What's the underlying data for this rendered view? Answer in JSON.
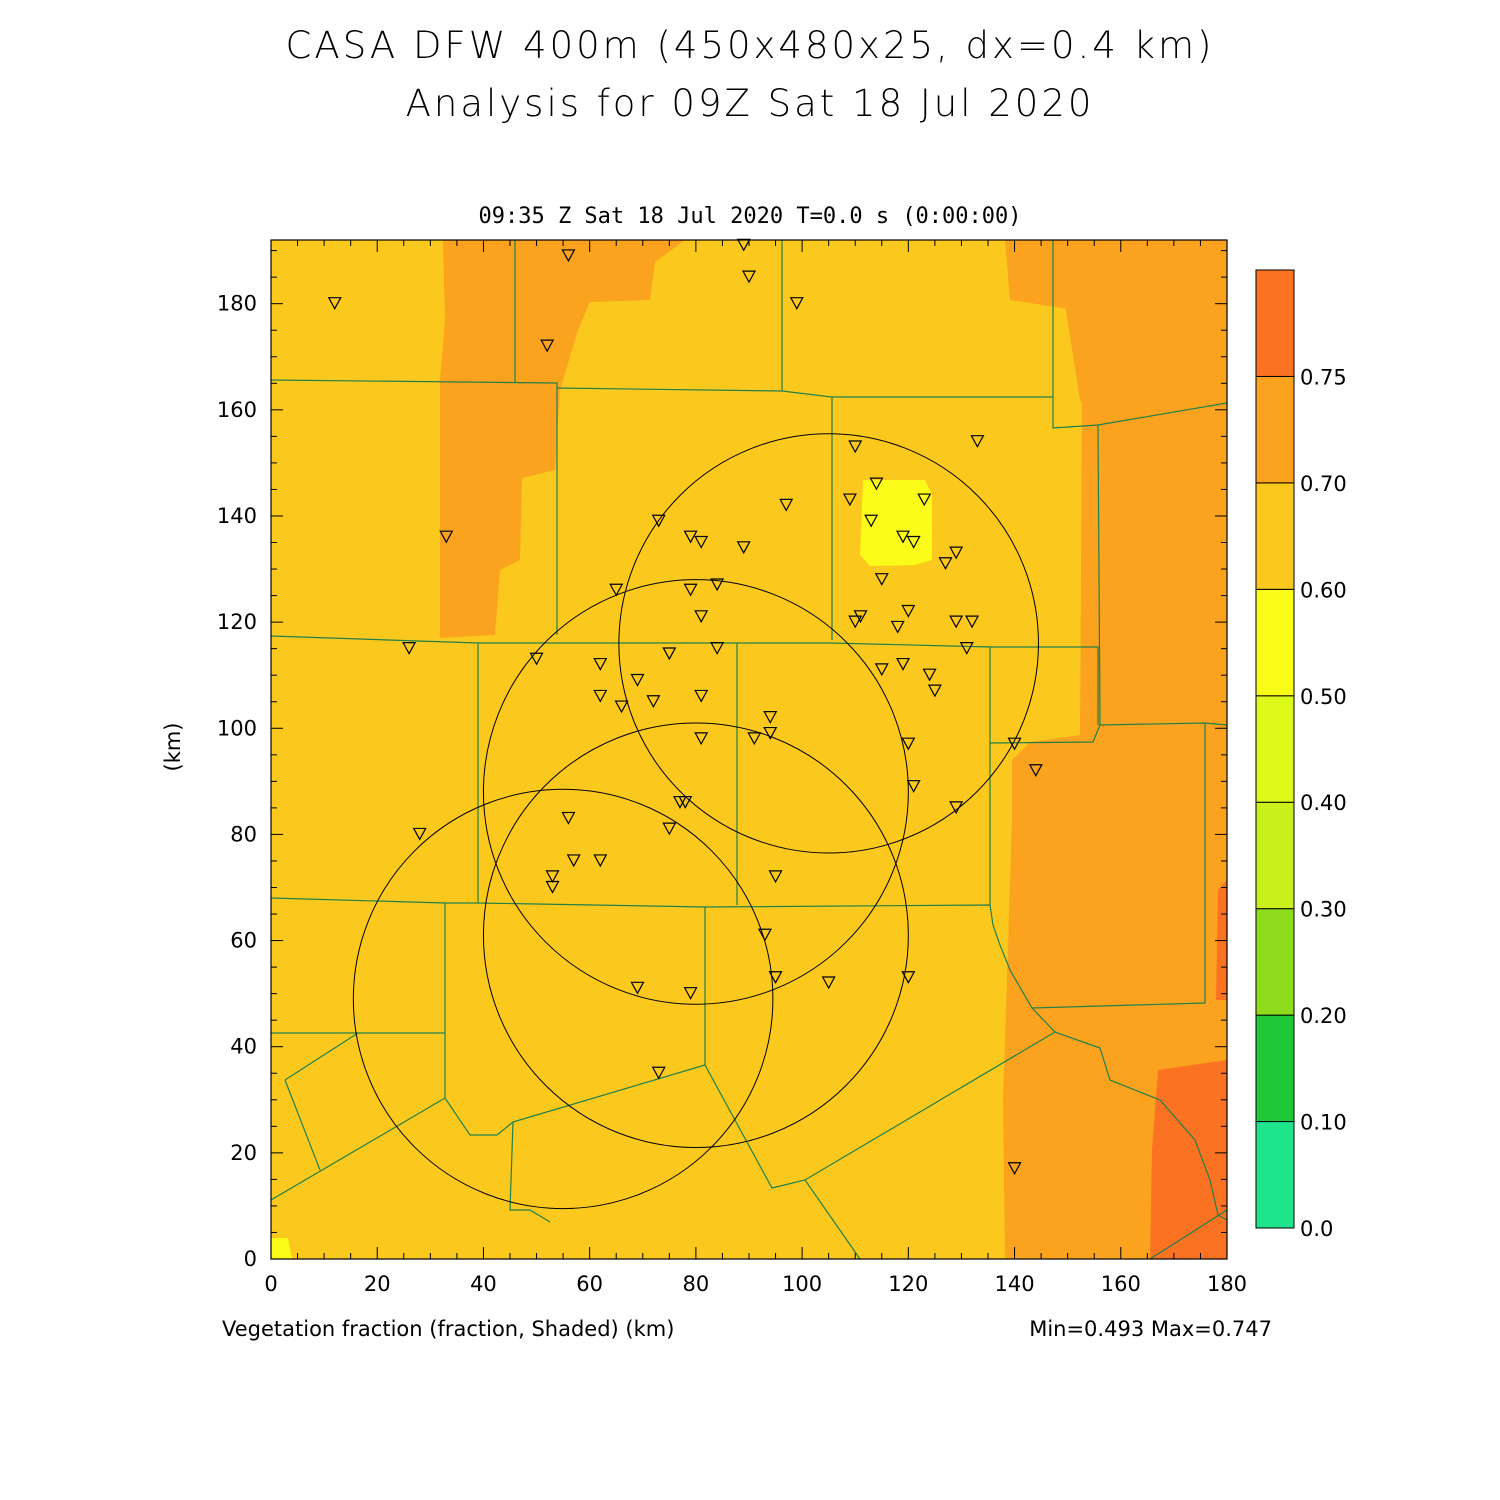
{
  "title_line1": "CASA DFW 400m (450x480x25, dx=0.4 km)",
  "title_line2": "Analysis for 09Z Sat 18 Jul 2020",
  "subtitle": "09:35 Z Sat 18 Jul 2020   T=0.0 s (0:00:00)",
  "footer_left": "Vegetation fraction (fraction, Shaded)  (km)",
  "footer_right": "Min=0.493 Max=0.747",
  "colors": {
    "band_050_060": "#fbc91e",
    "band_060_070": "#fba21e",
    "band_070_075": "#fb7322",
    "band_040_050": "#fbfb1a",
    "county_line": "#20804a",
    "frame": "#000000"
  },
  "chart_data": {
    "type": "heatmap",
    "variable": "Vegetation fraction",
    "ylabel": "(km)",
    "xlim": [
      0,
      180
    ],
    "ylim": [
      0,
      192
    ],
    "x_ticks": [
      0,
      20,
      40,
      60,
      80,
      100,
      120,
      140,
      160,
      180
    ],
    "y_ticks": [
      0,
      20,
      40,
      60,
      80,
      100,
      120,
      140,
      160,
      180
    ],
    "colorbar": {
      "levels": [
        "0.0",
        "0.10",
        "0.20",
        "0.30",
        "0.40",
        "0.50",
        "0.60",
        "0.70",
        "0.75"
      ],
      "colors": [
        "#1ee58c",
        "#1ec837",
        "#8fdc1c",
        "#c9f01a",
        "#ddfb1a",
        "#fbfb1a",
        "#fbc91e",
        "#fba21e",
        "#fb7322"
      ]
    },
    "min": 0.493,
    "max": 0.747,
    "radar_rings": [
      {
        "center": [
          105,
          116
        ],
        "radius": 39.5
      },
      {
        "center": [
          80,
          88
        ],
        "radius": 40
      },
      {
        "center": [
          80,
          61
        ],
        "radius": 40
      },
      {
        "center": [
          55,
          49
        ],
        "radius": 39.5
      }
    ],
    "stations": [
      [
        12,
        180
      ],
      [
        56,
        189
      ],
      [
        89,
        191
      ],
      [
        90,
        185
      ],
      [
        99,
        180
      ],
      [
        52,
        172
      ],
      [
        33,
        136
      ],
      [
        26,
        115
      ],
      [
        50,
        113
      ],
      [
        110,
        153
      ],
      [
        133,
        154
      ],
      [
        114,
        146
      ],
      [
        97,
        142
      ],
      [
        109,
        143
      ],
      [
        123,
        143
      ],
      [
        73,
        139
      ],
      [
        113,
        139
      ],
      [
        79,
        136
      ],
      [
        81,
        135
      ],
      [
        89,
        134
      ],
      [
        119,
        136
      ],
      [
        121,
        135
      ],
      [
        129,
        133
      ],
      [
        127,
        131
      ],
      [
        65,
        126
      ],
      [
        79,
        126
      ],
      [
        84,
        127
      ],
      [
        115,
        128
      ],
      [
        81,
        121
      ],
      [
        111,
        121
      ],
      [
        110,
        120
      ],
      [
        120,
        122
      ],
      [
        118,
        119
      ],
      [
        129,
        120
      ],
      [
        132,
        120
      ],
      [
        84,
        115
      ],
      [
        131,
        115
      ],
      [
        62,
        112
      ],
      [
        75,
        114
      ],
      [
        115,
        111
      ],
      [
        119,
        112
      ],
      [
        124,
        110
      ],
      [
        125,
        107
      ],
      [
        62,
        106
      ],
      [
        69,
        109
      ],
      [
        81,
        106
      ],
      [
        66,
        104
      ],
      [
        72,
        105
      ],
      [
        94,
        102
      ],
      [
        94,
        99
      ],
      [
        81,
        98
      ],
      [
        91,
        98
      ],
      [
        120,
        97
      ],
      [
        140,
        97
      ],
      [
        144,
        92
      ],
      [
        121,
        89
      ],
      [
        77,
        86
      ],
      [
        78,
        86
      ],
      [
        129,
        85
      ],
      [
        28,
        80
      ],
      [
        56,
        83
      ],
      [
        75,
        81
      ],
      [
        57,
        75
      ],
      [
        62,
        75
      ],
      [
        53,
        72
      ],
      [
        53,
        70
      ],
      [
        95,
        72
      ],
      [
        93,
        61
      ],
      [
        69,
        51
      ],
      [
        79,
        50
      ],
      [
        95,
        53
      ],
      [
        105,
        52
      ],
      [
        120,
        53
      ],
      [
        73,
        35
      ],
      [
        140,
        17
      ]
    ]
  }
}
